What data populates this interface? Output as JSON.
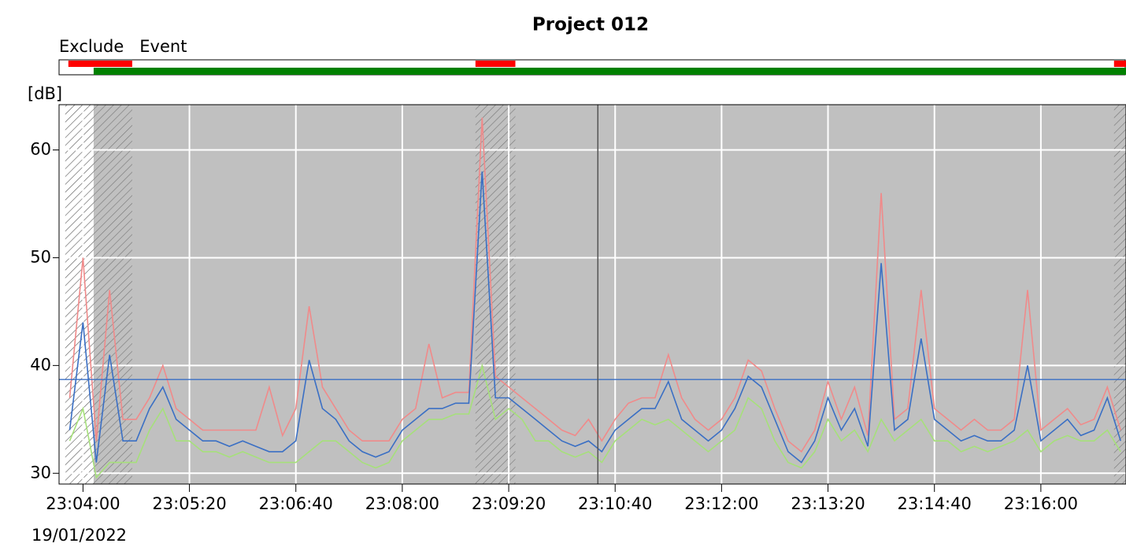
{
  "chart_data": {
    "type": "line",
    "title": "Project 012",
    "y_unit": "[dB]",
    "date": "19/01/2022",
    "legend": [
      {
        "name": "Exclude",
        "color": "#ff0000"
      },
      {
        "name": "Event",
        "color": "#008000"
      }
    ],
    "xlim": [
      "23:03:42",
      "23:17:04"
    ],
    "xticks": [
      "23:04:00",
      "23:05:20",
      "23:06:40",
      "23:08:00",
      "23:09:20",
      "23:10:40",
      "23:12:00",
      "23:13:20",
      "23:14:40",
      "23:16:00"
    ],
    "ylim": [
      29,
      64.2
    ],
    "yticks": [
      30,
      40,
      50,
      60
    ],
    "grid": true,
    "exclude": [
      [
        "23:03:49",
        "23:04:37"
      ],
      [
        "23:08:55",
        "23:09:25"
      ],
      [
        "23:16:55",
        "23:17:04"
      ]
    ],
    "event": [
      [
        "23:04:08",
        "23:17:04"
      ]
    ],
    "reference_line": 38.7,
    "reference_color": "#3a6fc4",
    "cursor": "23:10:27",
    "x": [
      "23:03:50",
      "23:04:00",
      "23:04:10",
      "23:04:20",
      "23:04:30",
      "23:04:40",
      "23:04:50",
      "23:05:00",
      "23:05:10",
      "23:05:20",
      "23:05:30",
      "23:05:40",
      "23:05:50",
      "23:06:00",
      "23:06:10",
      "23:06:20",
      "23:06:30",
      "23:06:40",
      "23:06:50",
      "23:07:00",
      "23:07:10",
      "23:07:20",
      "23:07:30",
      "23:07:40",
      "23:07:50",
      "23:08:00",
      "23:08:10",
      "23:08:20",
      "23:08:30",
      "23:08:40",
      "23:08:50",
      "23:09:00",
      "23:09:10",
      "23:09:20",
      "23:09:30",
      "23:09:40",
      "23:09:50",
      "23:10:00",
      "23:10:10",
      "23:10:20",
      "23:10:30",
      "23:10:40",
      "23:10:50",
      "23:11:00",
      "23:11:10",
      "23:11:20",
      "23:11:30",
      "23:11:40",
      "23:11:50",
      "23:12:00",
      "23:12:10",
      "23:12:20",
      "23:12:30",
      "23:12:40",
      "23:12:50",
      "23:13:00",
      "23:13:10",
      "23:13:20",
      "23:13:30",
      "23:13:40",
      "23:13:50",
      "23:14:00",
      "23:14:10",
      "23:14:20",
      "23:14:30",
      "23:14:40",
      "23:14:50",
      "23:15:00",
      "23:15:10",
      "23:15:20",
      "23:15:30",
      "23:15:40",
      "23:15:50",
      "23:16:00",
      "23:16:10",
      "23:16:20",
      "23:16:30",
      "23:16:40",
      "23:16:50",
      "23:17:00"
    ],
    "series": [
      {
        "color": "#a6e07a",
        "values": [
          33,
          36,
          29.6,
          31,
          31,
          31,
          34,
          36,
          33,
          33,
          32,
          32,
          31.5,
          32,
          31.5,
          31,
          31,
          31,
          32,
          33,
          33,
          32,
          31,
          30.5,
          31,
          33,
          34,
          35,
          35,
          35.5,
          35.5,
          40,
          35,
          36,
          35,
          33,
          33,
          32,
          31.5,
          32,
          31,
          33,
          34,
          35,
          34.5,
          35,
          34,
          33,
          32,
          33,
          34,
          37,
          36,
          33,
          31,
          30.5,
          32,
          35,
          33,
          34,
          32,
          35,
          33,
          34,
          35,
          33,
          33,
          32,
          32.5,
          32,
          32.5,
          33,
          34,
          32,
          33,
          33.5,
          33,
          33,
          34,
          32
        ]
      },
      {
        "color": "#f08a8a",
        "values": [
          37,
          50,
          33,
          47,
          35,
          35,
          37,
          40,
          36,
          35,
          34,
          34,
          34,
          34,
          34,
          38,
          33.5,
          36,
          45.5,
          38,
          36,
          34,
          33,
          33,
          33,
          35,
          36,
          42,
          37,
          37.5,
          37.5,
          63,
          39,
          38,
          37,
          36,
          35,
          34,
          33.5,
          35,
          33,
          35,
          36.5,
          37,
          37,
          41,
          37,
          35,
          34,
          35,
          37,
          40.5,
          39.5,
          36,
          33,
          32,
          34,
          38.5,
          35,
          38,
          33.5,
          56,
          35,
          36,
          47,
          36,
          35,
          34,
          35,
          34,
          34,
          35,
          47,
          34,
          35,
          36,
          34.5,
          35,
          38,
          34
        ]
      },
      {
        "color": "#3a6fc4",
        "values": [
          34,
          44,
          31,
          41,
          33,
          33,
          36,
          38,
          35,
          34,
          33,
          33,
          32.5,
          33,
          32.5,
          32,
          32,
          33,
          40.5,
          36,
          35,
          33,
          32,
          31.5,
          32,
          34,
          35,
          36,
          36,
          36.5,
          36.5,
          58,
          37,
          37,
          36,
          35,
          34,
          33,
          32.5,
          33,
          32,
          34,
          35,
          36,
          36,
          38.5,
          35,
          34,
          33,
          34,
          36,
          39,
          38,
          35,
          32,
          31,
          33,
          37,
          34,
          36,
          32.5,
          49.5,
          34,
          35,
          42.5,
          35,
          34,
          33,
          33.5,
          33,
          33,
          34,
          40,
          33,
          34,
          35,
          33.5,
          34,
          37,
          33
        ]
      }
    ]
  }
}
